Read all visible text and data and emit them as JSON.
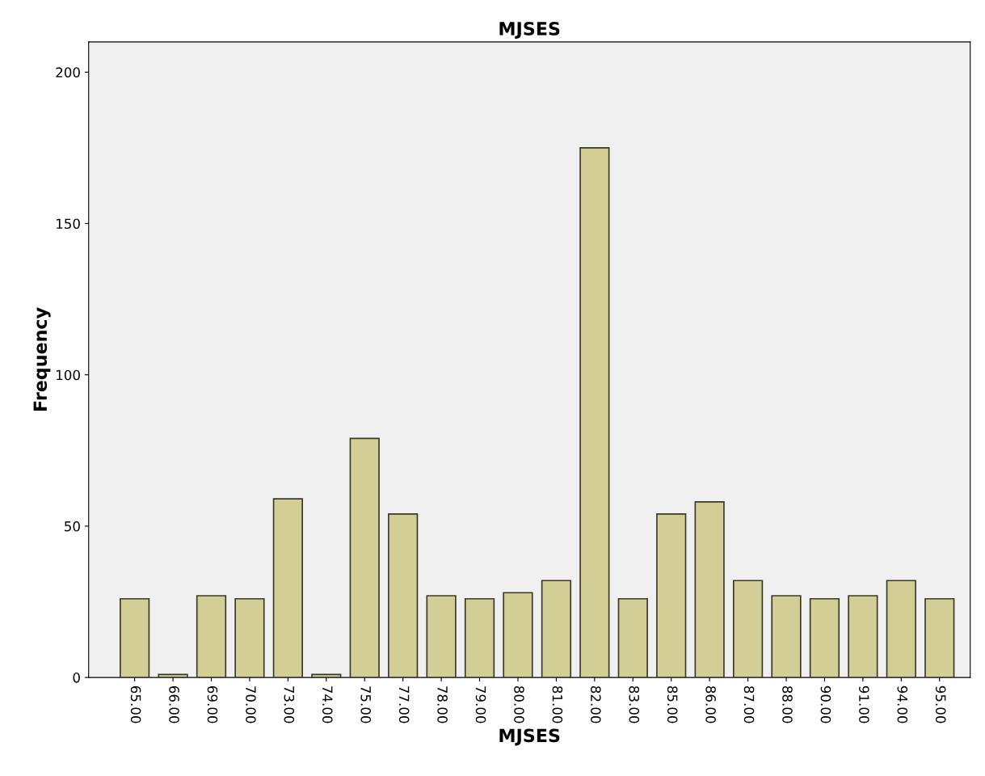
{
  "chart_data": {
    "type": "bar",
    "title": "MJSES",
    "xlabel": "MJSES",
    "ylabel": "Frequency",
    "categories": [
      "65.00",
      "66.00",
      "69.00",
      "70.00",
      "73.00",
      "74.00",
      "75.00",
      "77.00",
      "78.00",
      "79.00",
      "80.00",
      "81.00",
      "82.00",
      "83.00",
      "85.00",
      "86.00",
      "87.00",
      "88.00",
      "90.00",
      "91.00",
      "94.00",
      "95.00"
    ],
    "values": [
      26,
      1,
      27,
      26,
      59,
      1,
      79,
      54,
      27,
      26,
      28,
      32,
      175,
      26,
      54,
      58,
      32,
      27,
      26,
      27,
      32,
      26
    ],
    "color": "#d3ce96",
    "ylim": [
      0,
      210
    ],
    "yticks": [
      0,
      50,
      100,
      150,
      200
    ],
    "grid": false,
    "legend": false
  }
}
